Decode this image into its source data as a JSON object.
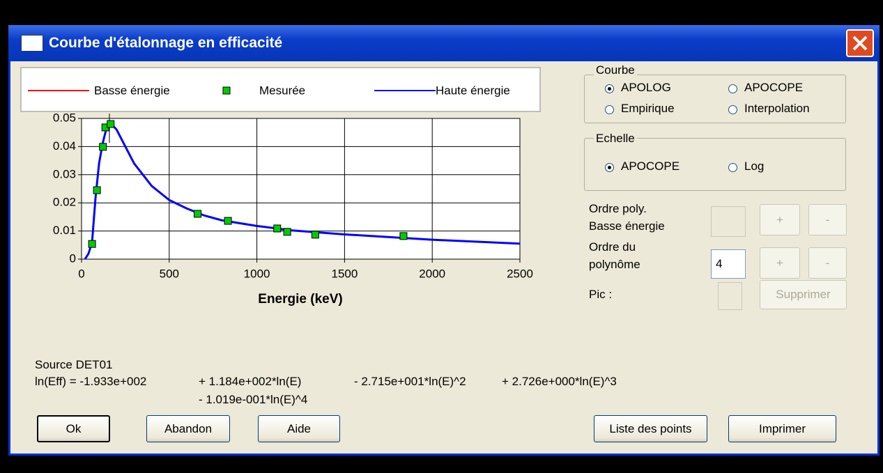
{
  "window": {
    "title": "Courbe d'étalonnage en efficacité"
  },
  "chart_data": {
    "type": "line",
    "xlabel": "Energie (keV)",
    "xlim": [
      0,
      2500
    ],
    "xticks": [
      0,
      500,
      1000,
      1500,
      2000,
      2500
    ],
    "ylim": [
      0,
      0.05
    ],
    "yticks": [
      0,
      0.01,
      0.02,
      0.03,
      0.04,
      0.05
    ],
    "grid": true,
    "series": [
      {
        "name": "Basse énergie",
        "color": "#ff0000"
      },
      {
        "name": "Mesurée",
        "color": "#00cc00",
        "marker": "square",
        "x": [
          60,
          88,
          122,
          136,
          166,
          662,
          835,
          1116,
          1173,
          1333,
          1836
        ],
        "values": [
          0.0054,
          0.0245,
          0.0399,
          0.0468,
          0.048,
          0.0161,
          0.0136,
          0.0109,
          0.0097,
          0.0087,
          0.0082
        ]
      },
      {
        "name": "Haute énergie",
        "color": "#0000ff",
        "x": [
          20,
          40,
          60,
          80,
          100,
          120,
          140,
          170,
          200,
          250,
          300,
          400,
          500,
          600,
          700,
          800,
          1000,
          1200,
          1500,
          2000,
          2500
        ],
        "values": [
          0,
          0.002,
          0.006,
          0.022,
          0.034,
          0.041,
          0.046,
          0.048,
          0.046,
          0.04,
          0.034,
          0.026,
          0.021,
          0.018,
          0.0155,
          0.0138,
          0.0118,
          0.0102,
          0.0088,
          0.0069,
          0.0055
        ]
      }
    ]
  },
  "courbe": {
    "label": "Courbe",
    "options": [
      "APOLOG",
      "APOCOPE",
      "Empirique",
      "Interpolation"
    ],
    "checked": [
      true,
      false,
      false,
      false
    ]
  },
  "echelle": {
    "label": "Echelle",
    "options": [
      "APOCOPE",
      "Log"
    ],
    "checked": [
      true,
      false
    ]
  },
  "ordre_basse": {
    "label": [
      "Ordre poly.",
      "Basse énergie"
    ]
  },
  "ordre": {
    "label": [
      "Ordre du",
      "polynôme"
    ],
    "value": 4
  },
  "plus": "+",
  "minus": "-",
  "pic": {
    "label": "Pic :",
    "button": "Supprimer"
  },
  "source": "Source DET01",
  "formula": [
    [
      "ln(Eff) = -1.933e+002",
      "+ 1.184e+002*ln(E)",
      "- 2.715e+001*ln(E)^2",
      "+ 2.726e+000*ln(E)^3"
    ],
    [
      "- 1.019e-001*ln(E)^4"
    ]
  ],
  "buttons": [
    "Ok",
    "Abandon",
    "Aide",
    "Liste des points",
    "Imprimer"
  ]
}
